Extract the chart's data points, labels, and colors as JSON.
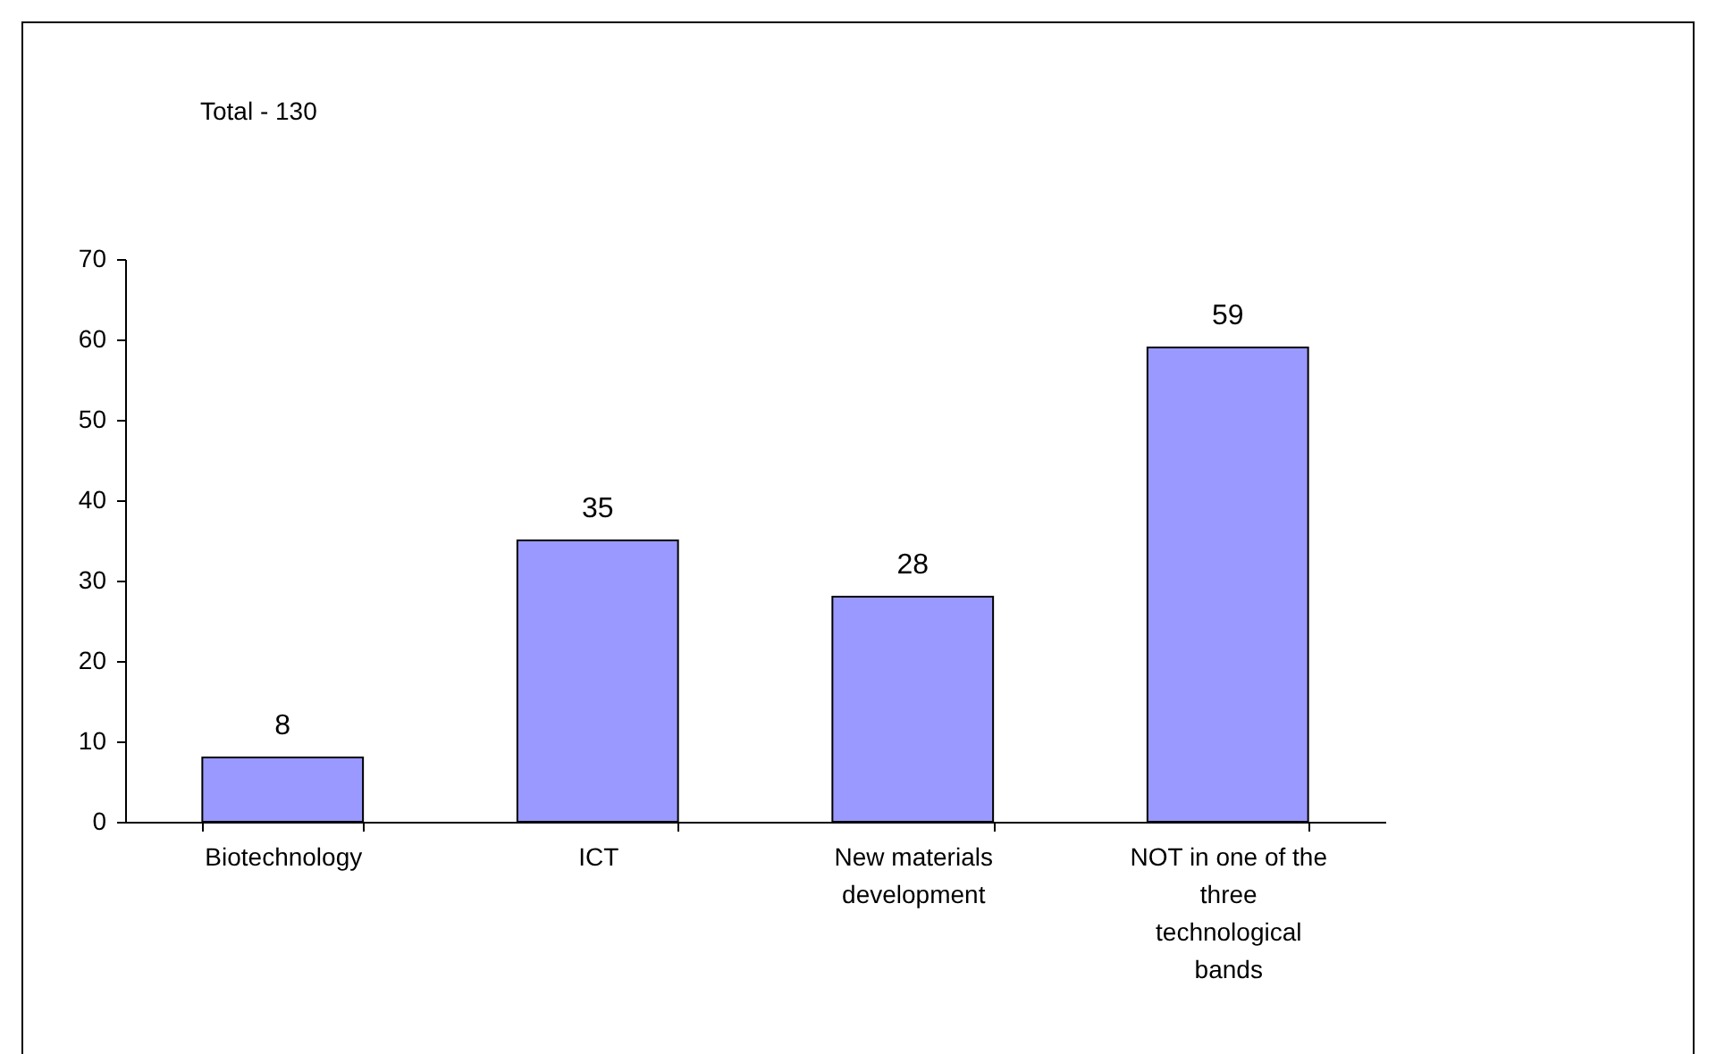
{
  "chart_data": {
    "type": "bar",
    "annotations": [
      "Total - 130"
    ],
    "categories": [
      "Biotechnology",
      "ICT",
      "New materials development",
      "NOT in one of the three technological bands"
    ],
    "values": [
      8,
      35,
      28,
      59
    ],
    "color": "#9999ff",
    "data_labels": true,
    "grid": false,
    "ylim": [
      0,
      70
    ],
    "yticks": [
      0,
      10,
      20,
      30,
      40,
      50,
      60,
      70
    ]
  }
}
